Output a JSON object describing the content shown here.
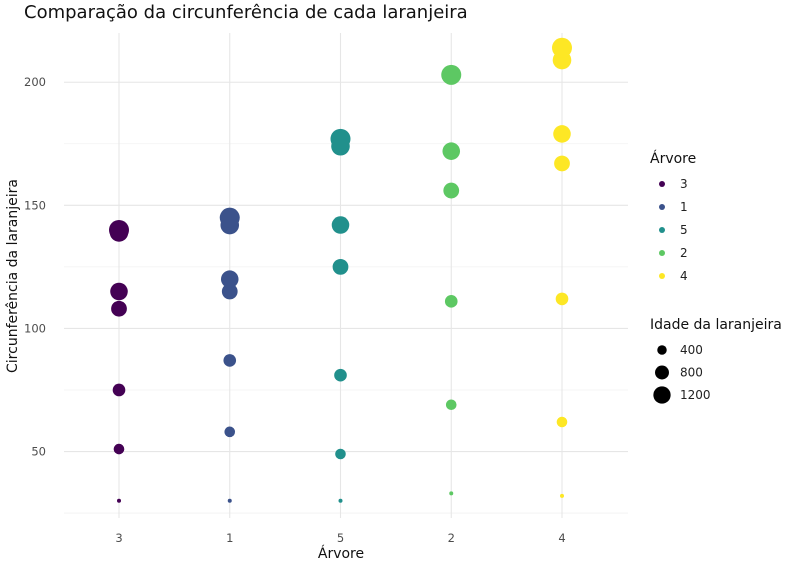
{
  "chart_data": {
    "type": "scatter",
    "title": "Comparação da circunferência de cada laranjeira",
    "xlabel": "Árvore",
    "ylabel": "Circunferência da laranjeira",
    "categories": [
      "3",
      "1",
      "5",
      "2",
      "4"
    ],
    "ylim": [
      23,
      220
    ],
    "yticks": [
      50,
      100,
      150,
      200
    ],
    "grid": true,
    "size_legend": {
      "title": "Idade da laranjeira",
      "values": [
        400,
        800,
        1200
      ]
    },
    "series": [
      {
        "name": "3",
        "color": "#440154",
        "points": [
          {
            "age": 118,
            "y": 30
          },
          {
            "age": 484,
            "y": 51
          },
          {
            "age": 664,
            "y": 75
          },
          {
            "age": 1004,
            "y": 108
          },
          {
            "age": 1231,
            "y": 115
          },
          {
            "age": 1372,
            "y": 139
          },
          {
            "age": 1582,
            "y": 140
          }
        ]
      },
      {
        "name": "1",
        "color": "#3b528b",
        "points": [
          {
            "age": 118,
            "y": 30
          },
          {
            "age": 484,
            "y": 58
          },
          {
            "age": 664,
            "y": 87
          },
          {
            "age": 1004,
            "y": 115
          },
          {
            "age": 1231,
            "y": 120
          },
          {
            "age": 1372,
            "y": 142
          },
          {
            "age": 1582,
            "y": 145
          }
        ]
      },
      {
        "name": "5",
        "color": "#21908c",
        "points": [
          {
            "age": 118,
            "y": 30
          },
          {
            "age": 484,
            "y": 49
          },
          {
            "age": 664,
            "y": 81
          },
          {
            "age": 1004,
            "y": 125
          },
          {
            "age": 1231,
            "y": 142
          },
          {
            "age": 1372,
            "y": 174
          },
          {
            "age": 1582,
            "y": 177
          }
        ]
      },
      {
        "name": "2",
        "color": "#5dc863",
        "points": [
          {
            "age": 118,
            "y": 33
          },
          {
            "age": 484,
            "y": 69
          },
          {
            "age": 664,
            "y": 111
          },
          {
            "age": 1004,
            "y": 156
          },
          {
            "age": 1231,
            "y": 172
          },
          {
            "age": 1372,
            "y": 203
          },
          {
            "age": 1582,
            "y": 203
          }
        ]
      },
      {
        "name": "4",
        "color": "#fde725",
        "points": [
          {
            "age": 118,
            "y": 32
          },
          {
            "age": 484,
            "y": 62
          },
          {
            "age": 664,
            "y": 112
          },
          {
            "age": 1004,
            "y": 167
          },
          {
            "age": 1231,
            "y": 179
          },
          {
            "age": 1372,
            "y": 209
          },
          {
            "age": 1582,
            "y": 214
          }
        ]
      }
    ]
  }
}
